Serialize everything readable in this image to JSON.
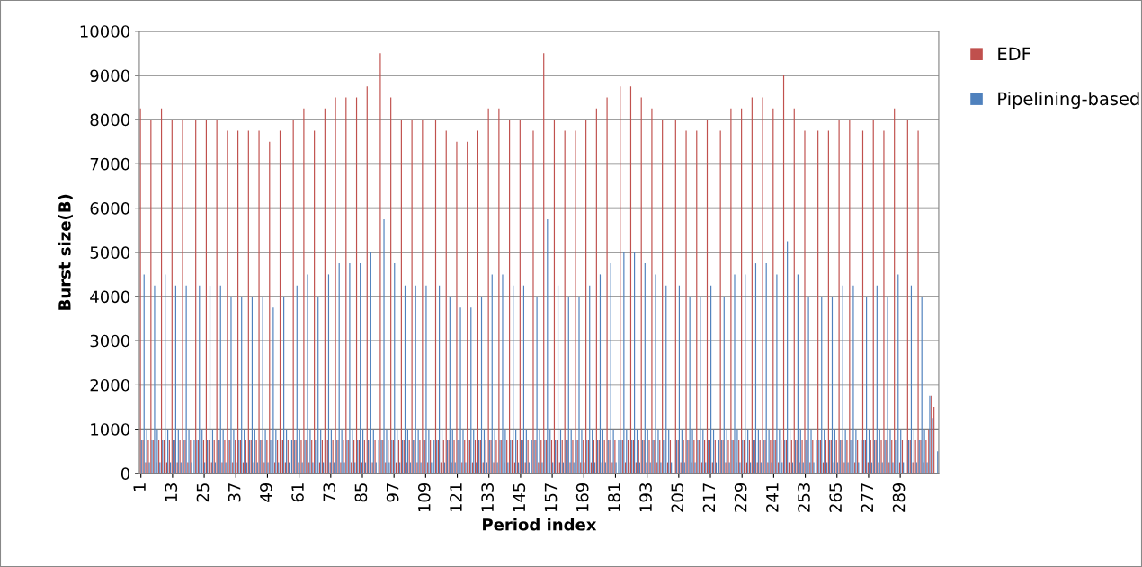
{
  "chart_data": {
    "type": "bar",
    "xlabel": "Period index",
    "ylabel": "Burst size(B)",
    "categories": [
      "1",
      null,
      null,
      null,
      null,
      null,
      null,
      null,
      null,
      null,
      null,
      null,
      "13",
      null,
      null,
      null,
      null,
      null,
      null,
      null,
      null,
      null,
      null,
      null,
      "25",
      null,
      null,
      null,
      null,
      null,
      null,
      null,
      null,
      null,
      null,
      null,
      "37",
      null,
      null,
      null,
      null,
      null,
      null,
      null,
      null,
      null,
      null,
      null,
      "49",
      null,
      null,
      null,
      null,
      null,
      null,
      null,
      null,
      null,
      null,
      null,
      "61",
      null,
      null,
      null,
      null,
      null,
      null,
      null,
      null,
      null,
      null,
      null,
      "73",
      null,
      null,
      null,
      null,
      null,
      null,
      null,
      null,
      null,
      null,
      null,
      "85",
      null,
      null,
      null,
      null,
      null,
      null,
      null,
      null,
      null,
      null,
      null,
      "97",
      null,
      null,
      null,
      null,
      null,
      null,
      null,
      null,
      null,
      null,
      null,
      "109",
      null,
      null,
      null,
      null,
      null,
      null,
      null,
      null,
      null,
      null,
      null,
      "121",
      null,
      null,
      null,
      null,
      null,
      null,
      null,
      null,
      null,
      null,
      null,
      "133",
      null,
      null,
      null,
      null,
      null,
      null,
      null,
      null,
      null,
      null,
      null,
      "145",
      null,
      null,
      null,
      null,
      null,
      null,
      null,
      null,
      null,
      null,
      null,
      "157",
      null,
      null,
      null,
      null,
      null,
      null,
      null,
      null,
      null,
      null,
      null,
      "169",
      null,
      null,
      null,
      null,
      null,
      null,
      null,
      null,
      null,
      null,
      null,
      "181",
      null,
      null,
      null,
      null,
      null,
      null,
      null,
      null,
      null,
      null,
      null,
      "193",
      null,
      null,
      null,
      null,
      null,
      null,
      null,
      null,
      null,
      null,
      null,
      "205",
      null,
      null,
      null,
      null,
      null,
      null,
      null,
      null,
      null,
      null,
      null,
      "217",
      null,
      null,
      null,
      null,
      null,
      null,
      null,
      null,
      null,
      null,
      null,
      "229",
      null,
      null,
      null,
      null,
      null,
      null,
      null,
      null,
      null,
      null,
      null,
      "241",
      null,
      null,
      null,
      null,
      null,
      null,
      null,
      null,
      null,
      null,
      null,
      "253",
      null,
      null,
      null,
      null,
      null,
      null,
      null,
      null,
      null,
      null,
      null,
      "265",
      null,
      null,
      null,
      null,
      null,
      null,
      null,
      null,
      null,
      null,
      null,
      "277",
      null,
      null,
      null,
      null,
      null,
      null,
      null,
      null,
      null,
      null,
      null,
      "289",
      null,
      null,
      null,
      null,
      null,
      null,
      null,
      null,
      null,
      null,
      null,
      null,
      null,
      null
    ],
    "series": [
      {
        "name": "EDF",
        "color": "#c0504d",
        "values": [
          8250,
          750,
          250,
          750,
          8000,
          750,
          250,
          750,
          8250,
          750,
          250,
          750,
          8000,
          750,
          250,
          750,
          8000,
          750,
          250,
          750,
          0,
          8000,
          750,
          250,
          750,
          8000,
          750,
          250,
          750,
          8000,
          750,
          250,
          750,
          7750,
          750,
          250,
          750,
          7750,
          750,
          250,
          750,
          7750,
          750,
          250,
          750,
          7750,
          750,
          250,
          750,
          7500,
          750,
          250,
          750,
          7750,
          750,
          250,
          750,
          0,
          8000,
          750,
          250,
          750,
          8250,
          750,
          250,
          750,
          7750,
          750,
          250,
          750,
          8250,
          750,
          250,
          750,
          8500,
          750,
          250,
          750,
          8500,
          750,
          250,
          750,
          8500,
          750,
          250,
          750,
          8750,
          750,
          250,
          750,
          0,
          9500,
          750,
          250,
          750,
          8500,
          750,
          250,
          750,
          8000,
          750,
          250,
          750,
          8000,
          750,
          250,
          750,
          8000,
          750,
          250,
          750,
          0,
          8000,
          750,
          250,
          750,
          7750,
          750,
          250,
          750,
          7500,
          750,
          250,
          750,
          7500,
          750,
          250,
          750,
          7750,
          750,
          250,
          750,
          8250,
          750,
          250,
          750,
          8250,
          750,
          250,
          750,
          8000,
          750,
          250,
          750,
          8000,
          750,
          250,
          750,
          0,
          7750,
          750,
          250,
          750,
          9500,
          750,
          250,
          750,
          8000,
          750,
          250,
          750,
          7750,
          750,
          250,
          750,
          7750,
          750,
          250,
          750,
          8000,
          750,
          250,
          750,
          8250,
          750,
          250,
          750,
          8500,
          750,
          250,
          750,
          0,
          8750,
          750,
          250,
          750,
          8750,
          750,
          250,
          750,
          8500,
          750,
          250,
          750,
          8250,
          750,
          250,
          750,
          8000,
          750,
          250,
          750,
          0,
          8000,
          750,
          250,
          750,
          7750,
          750,
          250,
          750,
          7750,
          750,
          250,
          750,
          8000,
          750,
          250,
          750,
          0,
          7750,
          750,
          250,
          750,
          8250,
          750,
          250,
          750,
          8250,
          750,
          250,
          750,
          8500,
          750,
          250,
          750,
          8500,
          750,
          250,
          750,
          8250,
          750,
          250,
          750,
          9000,
          750,
          250,
          750,
          8250,
          750,
          250,
          750,
          7750,
          750,
          250,
          750,
          0,
          7750,
          750,
          250,
          750,
          7750,
          750,
          250,
          750,
          8000,
          750,
          250,
          750,
          8000,
          750,
          250,
          750,
          0,
          7750,
          750,
          250,
          750,
          8000,
          750,
          250,
          750,
          7750,
          750,
          250,
          750,
          8250,
          750,
          250,
          750,
          0,
          8000,
          750,
          250,
          750,
          7750,
          750,
          250,
          750,
          1000,
          1750,
          1500,
          0
        ]
      },
      {
        "name": "Pipelining-based",
        "color": "#4f81bd",
        "values": [
          750,
          4500,
          1000,
          250,
          750,
          4250,
          1000,
          250,
          750,
          4500,
          1000,
          250,
          750,
          4250,
          1000,
          250,
          750,
          4250,
          1000,
          250,
          750,
          750,
          4250,
          1000,
          250,
          750,
          4250,
          1000,
          250,
          750,
          4250,
          1000,
          250,
          750,
          4000,
          1000,
          250,
          750,
          4000,
          1000,
          250,
          750,
          4000,
          1000,
          250,
          750,
          4000,
          1000,
          250,
          750,
          3750,
          1000,
          250,
          750,
          4000,
          1000,
          250,
          750,
          750,
          4250,
          1000,
          250,
          750,
          4500,
          1000,
          250,
          750,
          4000,
          1000,
          250,
          750,
          4500,
          1000,
          250,
          750,
          4750,
          1000,
          250,
          750,
          4750,
          1000,
          250,
          750,
          4750,
          1000,
          250,
          750,
          5000,
          1000,
          250,
          750,
          750,
          5750,
          1000,
          250,
          750,
          4750,
          1000,
          250,
          750,
          4250,
          1000,
          250,
          750,
          4250,
          1000,
          250,
          750,
          4250,
          1000,
          250,
          750,
          750,
          4250,
          1000,
          250,
          750,
          4000,
          1000,
          250,
          750,
          3750,
          1000,
          250,
          750,
          3750,
          1000,
          250,
          750,
          4000,
          1000,
          250,
          750,
          4500,
          1000,
          250,
          750,
          4500,
          1000,
          250,
          750,
          4250,
          1000,
          250,
          750,
          4250,
          1000,
          250,
          750,
          750,
          4000,
          1000,
          250,
          750,
          5750,
          1000,
          250,
          750,
          4250,
          1000,
          250,
          750,
          4000,
          1000,
          250,
          750,
          4000,
          1000,
          250,
          750,
          4250,
          1000,
          250,
          750,
          4500,
          1000,
          250,
          750,
          4750,
          1000,
          250,
          750,
          750,
          5000,
          1000,
          250,
          750,
          5000,
          1000,
          250,
          750,
          4750,
          1000,
          250,
          750,
          4500,
          1000,
          250,
          750,
          4250,
          1000,
          250,
          750,
          750,
          4250,
          1000,
          250,
          750,
          4000,
          1000,
          250,
          750,
          4000,
          1000,
          250,
          750,
          4250,
          1000,
          250,
          750,
          750,
          4000,
          1000,
          250,
          750,
          4500,
          1000,
          250,
          750,
          4500,
          1000,
          250,
          750,
          4750,
          1000,
          250,
          750,
          4750,
          1000,
          250,
          750,
          4500,
          1000,
          250,
          750,
          5250,
          1000,
          250,
          750,
          4500,
          1000,
          250,
          750,
          4000,
          1000,
          250,
          750,
          750,
          4000,
          1000,
          250,
          750,
          4000,
          1000,
          250,
          750,
          4250,
          1000,
          250,
          750,
          4250,
          1000,
          250,
          750,
          750,
          4000,
          1000,
          250,
          750,
          4250,
          1000,
          250,
          750,
          4000,
          1000,
          250,
          750,
          4500,
          1000,
          250,
          750,
          750,
          4250,
          1000,
          250,
          750,
          4000,
          1000,
          250,
          1750,
          1250,
          0,
          500
        ]
      }
    ],
    "ylim": [
      0,
      10000
    ],
    "yticks": [
      0,
      1000,
      2000,
      3000,
      4000,
      5000,
      6000,
      7000,
      8000,
      9000,
      10000
    ],
    "grid": "y",
    "legend": "right"
  }
}
